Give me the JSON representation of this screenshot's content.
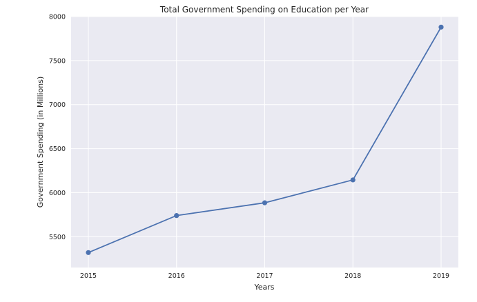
{
  "chart_data": {
    "type": "line",
    "title": "Total Government Spending on Education per Year",
    "xlabel": "Years",
    "ylabel": "Government Spending (in Millions)",
    "x": [
      "2015",
      "2016",
      "2017",
      "2018",
      "2019"
    ],
    "x_ticks": [
      "2015",
      "2016",
      "2017",
      "2018",
      "2019"
    ],
    "series": [
      {
        "values": [
          5320,
          5740,
          5885,
          6145,
          7880
        ],
        "marker": "circle"
      }
    ],
    "ylim": [
      5150,
      8000
    ],
    "y_ticks": [
      "5500",
      "6000",
      "6500",
      "7000",
      "7500",
      "8000"
    ],
    "grid": true,
    "colors": {
      "plot_background": "#eaeaf2",
      "grid": "#ffffff",
      "line": "#4c72b0",
      "text": "#262626"
    }
  }
}
